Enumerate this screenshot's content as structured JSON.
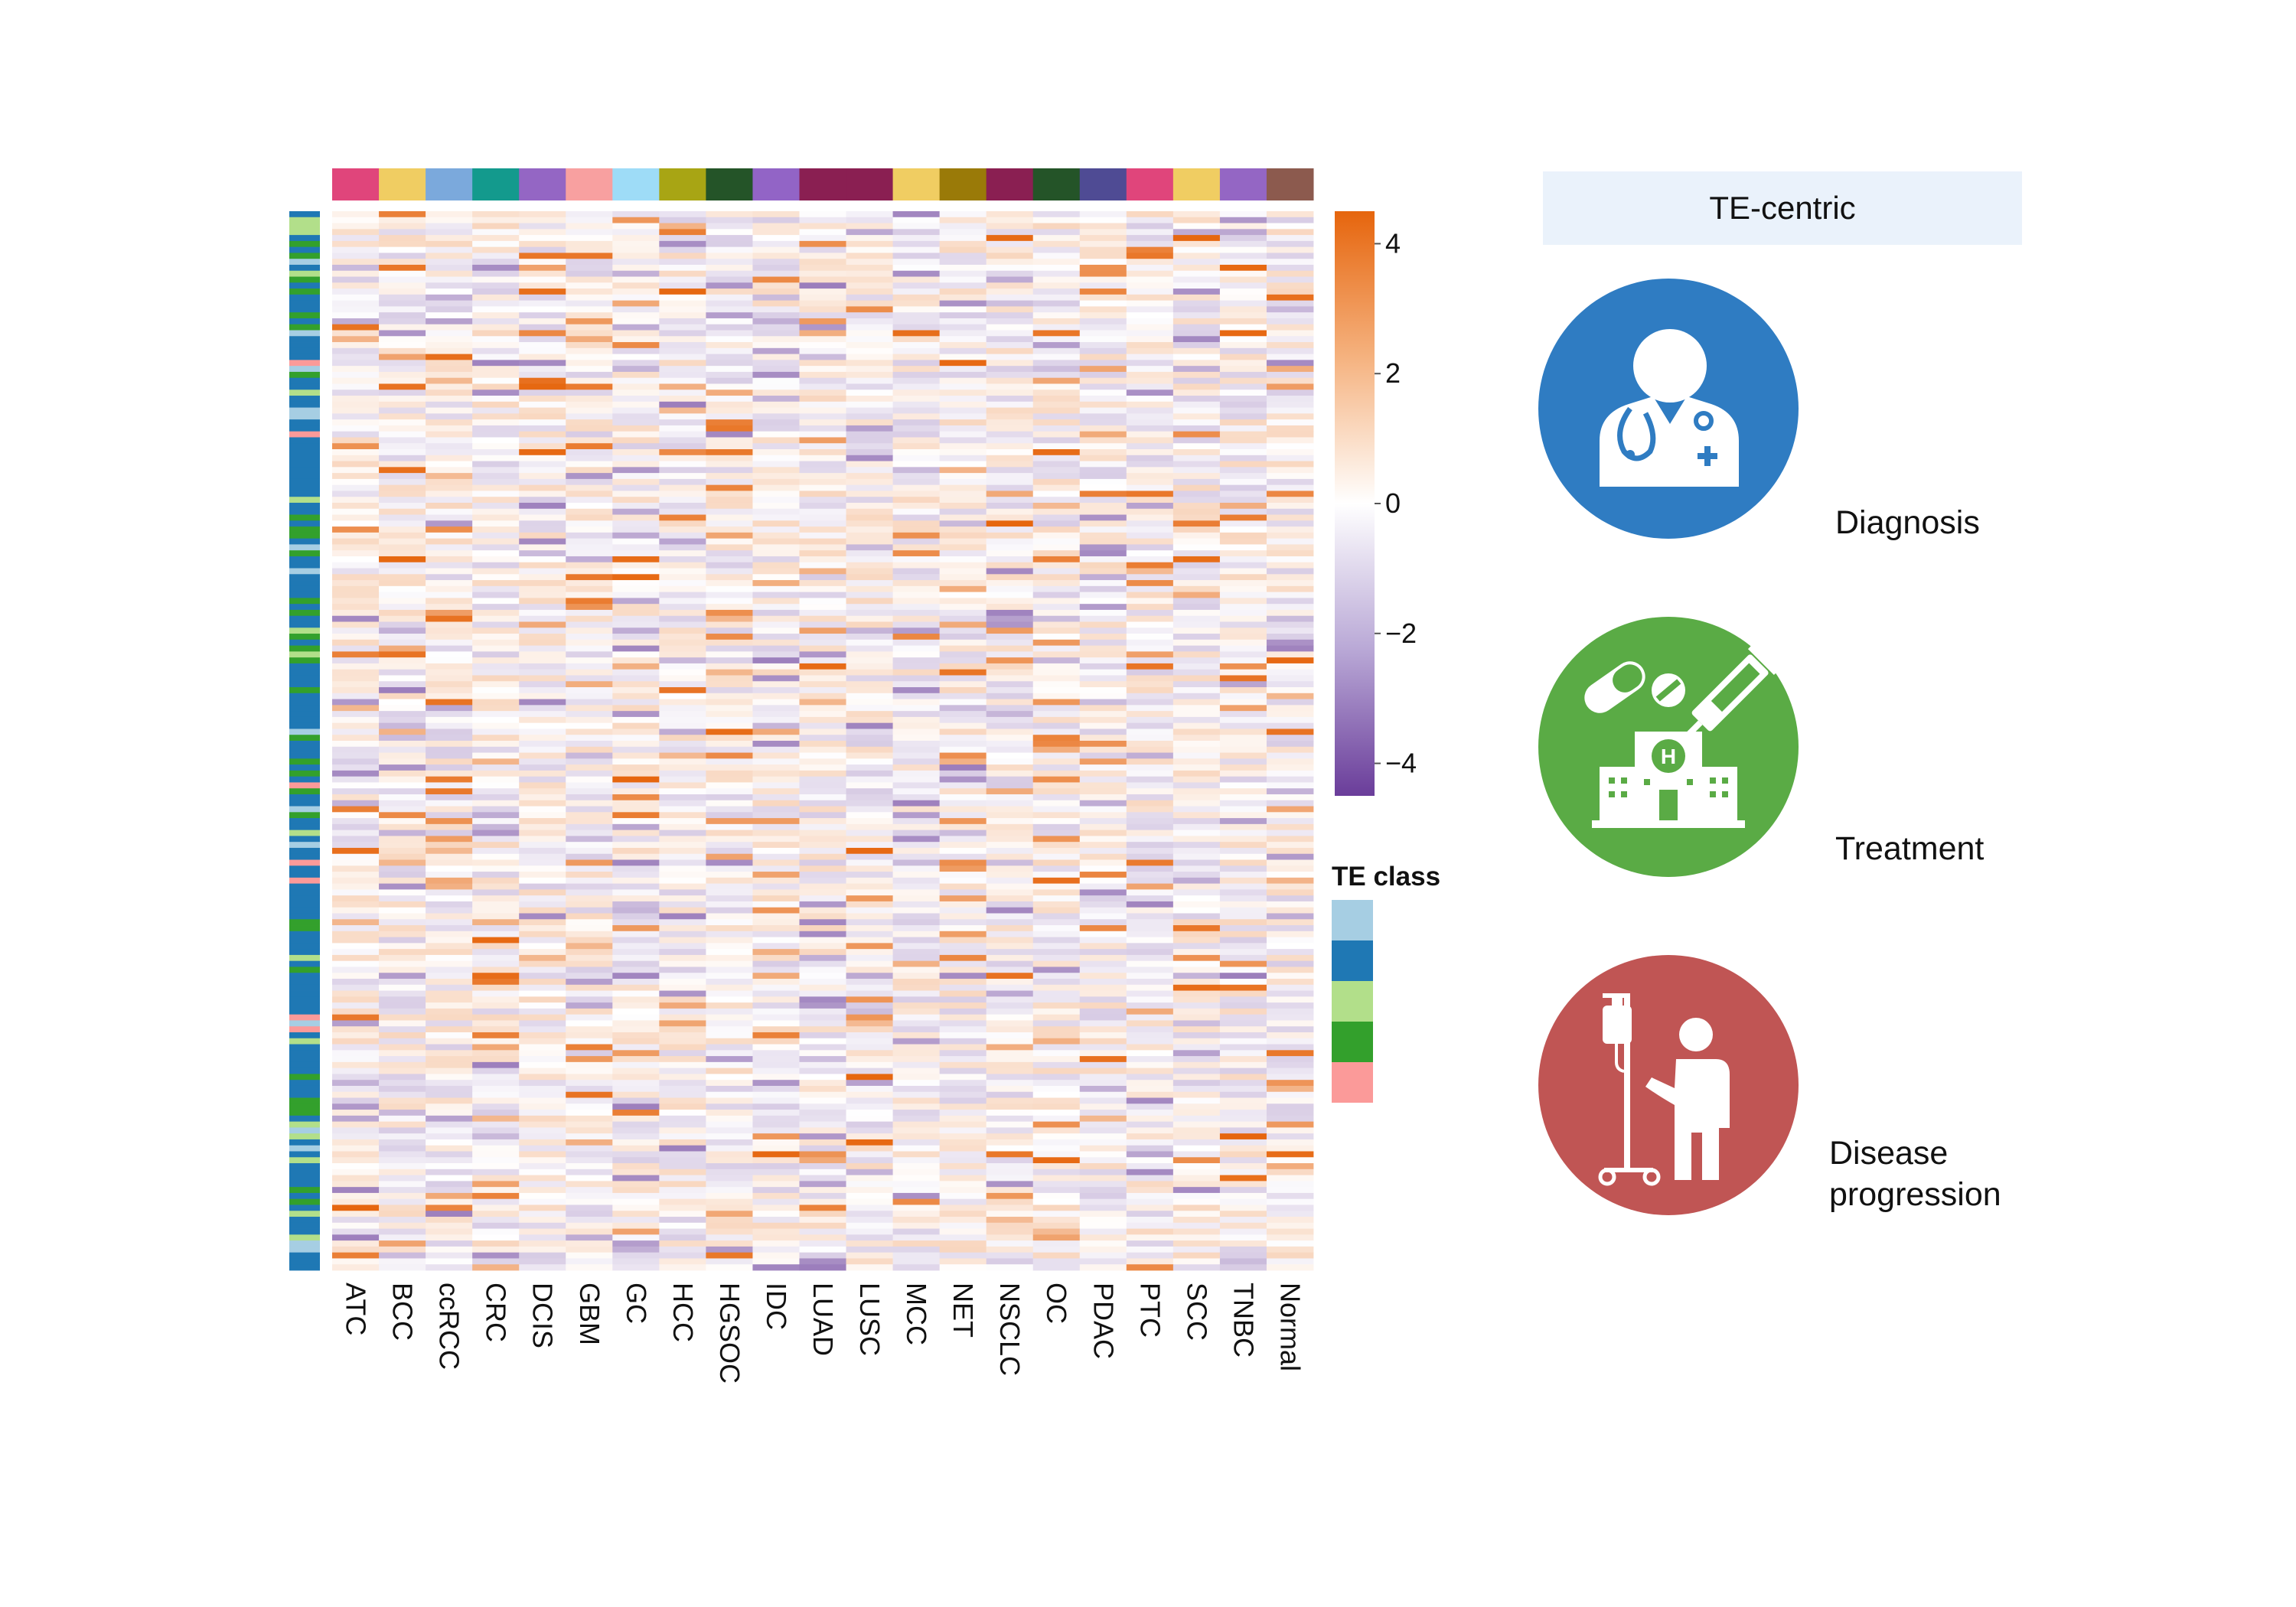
{
  "chart_data": {
    "type": "heatmap",
    "columns": [
      "ATC",
      "BCC",
      "ccRCC",
      "CRC",
      "DCIS",
      "GBM",
      "GC",
      "HCC",
      "HGSOC",
      "IDC",
      "LUAD",
      "LUSC",
      "MCC",
      "NET",
      "NSCLC",
      "OC",
      "PDAC",
      "PTC",
      "SCC",
      "TNBC",
      "Normal"
    ],
    "column_colors": [
      "#e0457b",
      "#f0cd62",
      "#7ba9dc",
      "#139a8d",
      "#9466c4",
      "#f8a0a0",
      "#9edcf7",
      "#a8a514",
      "#245428",
      "#9264c6",
      "#8a1f52",
      "#8a1f52",
      "#f0cd62",
      "#9a7a08",
      "#8a1f52",
      "#245428",
      "#4f4b94",
      "#e0457b",
      "#f0cd62",
      "#9466c4",
      "#8c5a4e"
    ],
    "row_count": 178,
    "color_scale": {
      "min": -4.5,
      "max": 4.5,
      "ticks": [
        "4",
        "2",
        "0",
        "−2",
        "−4"
      ],
      "low_color": "#6a3d9a",
      "mid_color": "#ffffff",
      "high_color": "#e6650d"
    },
    "legend_title": "TE class",
    "te_class_colors": [
      "#a6cee3",
      "#1f78b4",
      "#b2df8a",
      "#33a02c",
      "#fb9a99"
    ],
    "values_note": "random"
  },
  "panel": {
    "title": "TE-centric",
    "items": [
      {
        "label": "Diagnosis",
        "color": "#2f7cc2",
        "icon": "doctor-icon"
      },
      {
        "label": "Treatment",
        "color": "#5aab45",
        "icon": "hospital-pills-syringe-icon"
      },
      {
        "label_line1": "Disease",
        "label_line2": "progression",
        "color": "#c05554",
        "icon": "patient-iv-drip-icon"
      }
    ]
  }
}
